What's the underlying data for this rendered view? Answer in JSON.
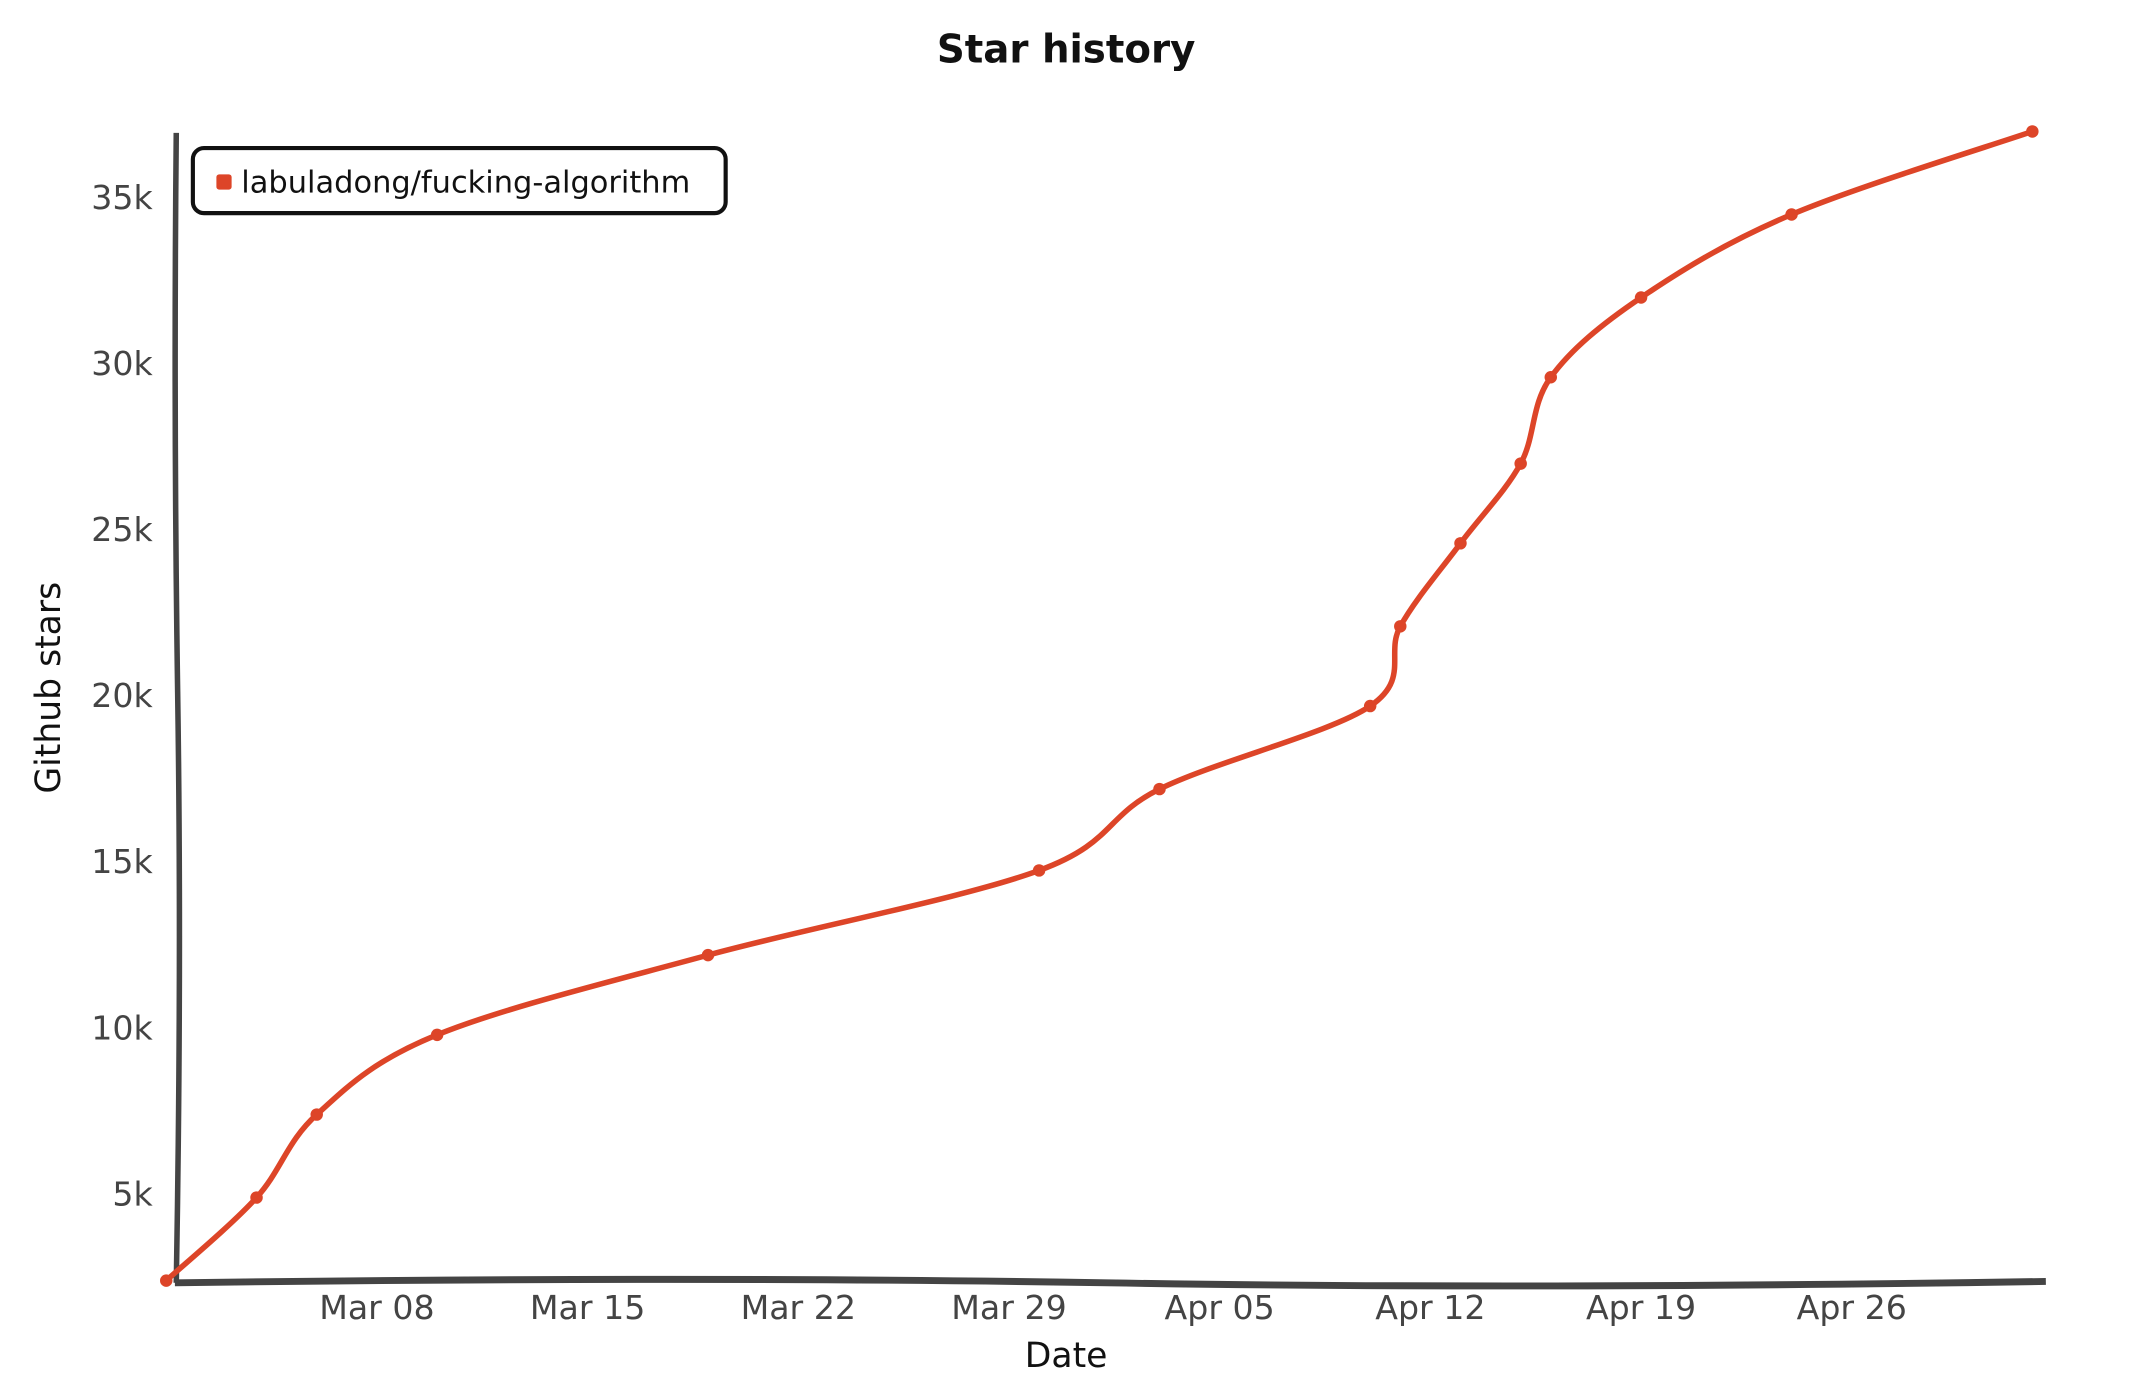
{
  "chart_data": {
    "type": "line",
    "title": "Star history",
    "xlabel": "Date",
    "ylabel": "Github stars",
    "x_ticks": [
      "Mar 08",
      "Mar 15",
      "Mar 22",
      "Mar 29",
      "Apr 05",
      "Apr 12",
      "Apr 19",
      "Apr 26"
    ],
    "y_ticks": [
      "5k",
      "10k",
      "15k",
      "20k",
      "25k",
      "30k",
      "35k"
    ],
    "y_tick_values": [
      5000,
      10000,
      15000,
      20000,
      25000,
      30000,
      35000
    ],
    "ylim": [
      2400,
      37000
    ],
    "xlim": [
      "Mar 01",
      "May 03"
    ],
    "grid": false,
    "legend_position": "top-left",
    "series": [
      {
        "name": "labuladong/fucking-algorithm",
        "color": "#dd4528",
        "points": [
          {
            "x": "Mar 01",
            "y": 2400
          },
          {
            "x": "Mar 04",
            "y": 4900
          },
          {
            "x": "Mar 06",
            "y": 7400
          },
          {
            "x": "Mar 10",
            "y": 9800
          },
          {
            "x": "Mar 19",
            "y": 12200
          },
          {
            "x": "Mar 30",
            "y": 14750
          },
          {
            "x": "Apr 03",
            "y": 17200
          },
          {
            "x": "Apr 10",
            "y": 19700
          },
          {
            "x": "Apr 11",
            "y": 22100
          },
          {
            "x": "Apr 13",
            "y": 24600
          },
          {
            "x": "Apr 15",
            "y": 27000
          },
          {
            "x": "Apr 16",
            "y": 29600
          },
          {
            "x": "Apr 19",
            "y": 32000
          },
          {
            "x": "Apr 24",
            "y": 34500
          },
          {
            "x": "May 02",
            "y": 37000
          }
        ]
      }
    ]
  }
}
